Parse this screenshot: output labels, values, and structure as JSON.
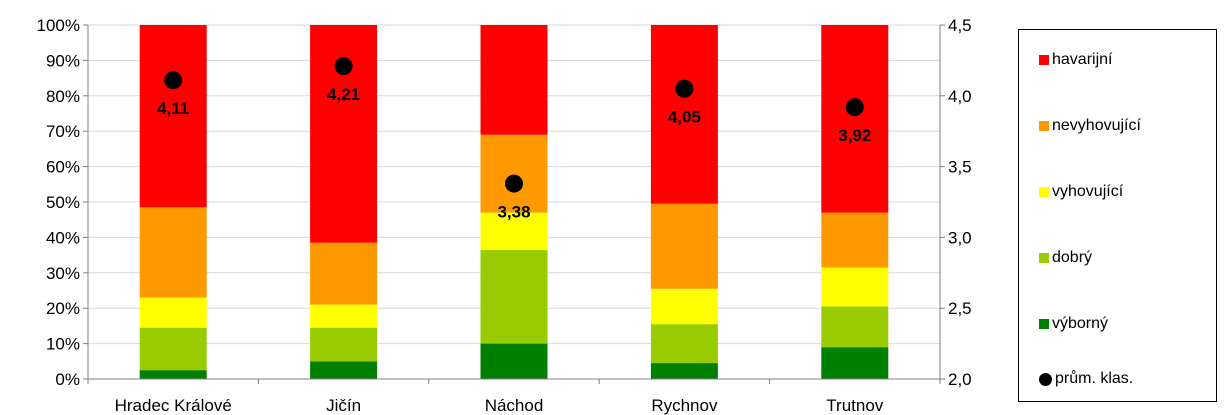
{
  "chart_data": {
    "type": "bar",
    "stacked": true,
    "categories": [
      "Hradec Králové",
      "Jičín",
      "Náchod",
      "Rychnov",
      "Trutnov"
    ],
    "series": [
      {
        "name": "výborný",
        "color": "#008000",
        "values": [
          2.5,
          5,
          10,
          4.5,
          9
        ]
      },
      {
        "name": "dobrý",
        "color": "#99CC00",
        "values": [
          12,
          9.5,
          26.5,
          11,
          11.5
        ]
      },
      {
        "name": "vyhovující",
        "color": "#FFFF00",
        "values": [
          8.5,
          6.5,
          10.5,
          10,
          11
        ]
      },
      {
        "name": "nevyhovující",
        "color": "#FF9900",
        "values": [
          25.5,
          17.5,
          22,
          24,
          15.5
        ]
      },
      {
        "name": "havarijní",
        "color": "#FF0000",
        "values": [
          51.5,
          61.5,
          31,
          50.5,
          53
        ]
      }
    ],
    "average": {
      "name": "prům. klas.",
      "values": [
        4.11,
        4.21,
        3.38,
        4.05,
        3.92
      ],
      "labels": [
        "4,11",
        "4,21",
        "3,38",
        "4,05",
        "3,92"
      ],
      "axis": "secondary"
    },
    "y_primary": {
      "ylim": [
        0,
        100
      ],
      "ticks": [
        "0%",
        "10%",
        "20%",
        "30%",
        "40%",
        "50%",
        "60%",
        "70%",
        "80%",
        "90%",
        "100%"
      ]
    },
    "y_secondary": {
      "ylim": [
        2.0,
        4.5
      ],
      "ticks": [
        "2,0",
        "2,5",
        "3,0",
        "3,5",
        "4,0",
        "4,5"
      ]
    },
    "grid": true,
    "legend_position": "right",
    "legend_order": [
      "havarijní",
      "nevyhovující",
      "vyhovující",
      "dobrý",
      "výborný",
      "prům. klas."
    ]
  }
}
